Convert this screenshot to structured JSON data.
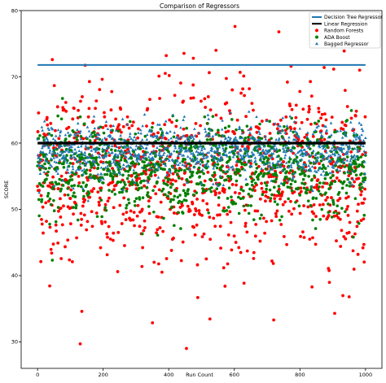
{
  "chart_data": {
    "type": "scatter",
    "title": "Comparison of Regressors",
    "xlabel": "Run Count",
    "ylabel": "SCORE",
    "xlim": [
      -50,
      1050
    ],
    "ylim": [
      26,
      80
    ],
    "xticks": [
      0,
      200,
      400,
      600,
      800,
      1000
    ],
    "yticks": [
      30,
      40,
      50,
      60,
      70,
      80
    ],
    "grid": false,
    "legend_position": "top-right",
    "series": [
      {
        "name": "Decision Tree Regressor",
        "kind": "line",
        "color": "#1f77b4",
        "x": [
          0,
          1000
        ],
        "y": [
          71.8,
          71.8
        ]
      },
      {
        "name": "Linear Regression",
        "kind": "line",
        "color": "#000000",
        "x": [
          0,
          1000
        ],
        "y": [
          60.0,
          60.0
        ]
      },
      {
        "name": "Random Forests",
        "kind": "scatter",
        "color": "#ff0000",
        "n_points": 1000,
        "mean": 55.5,
        "spread": 6.5,
        "notable_points": [
          [
            602,
            77.6
          ],
          [
            475,
            72.8
          ],
          [
            544,
            74.0
          ],
          [
            45,
            72.6
          ],
          [
            773,
            71.6
          ],
          [
            935,
            73.9
          ],
          [
            130,
            29.7
          ],
          [
            454,
            29.0
          ],
          [
            720,
            33.3
          ],
          [
            906,
            34.3
          ],
          [
            135,
            34.6
          ],
          [
            950,
            36.8
          ]
        ]
      },
      {
        "name": "ADA Boost",
        "kind": "scatter",
        "color": "#008000",
        "n_points": 1000,
        "mean": 56.0,
        "spread": 3.4
      },
      {
        "name": "Bagged Regressor",
        "kind": "scatter",
        "color": "#1f77b4",
        "marker": "triangle",
        "n_points": 1000,
        "mean": 58.8,
        "spread": 2.0
      }
    ]
  }
}
